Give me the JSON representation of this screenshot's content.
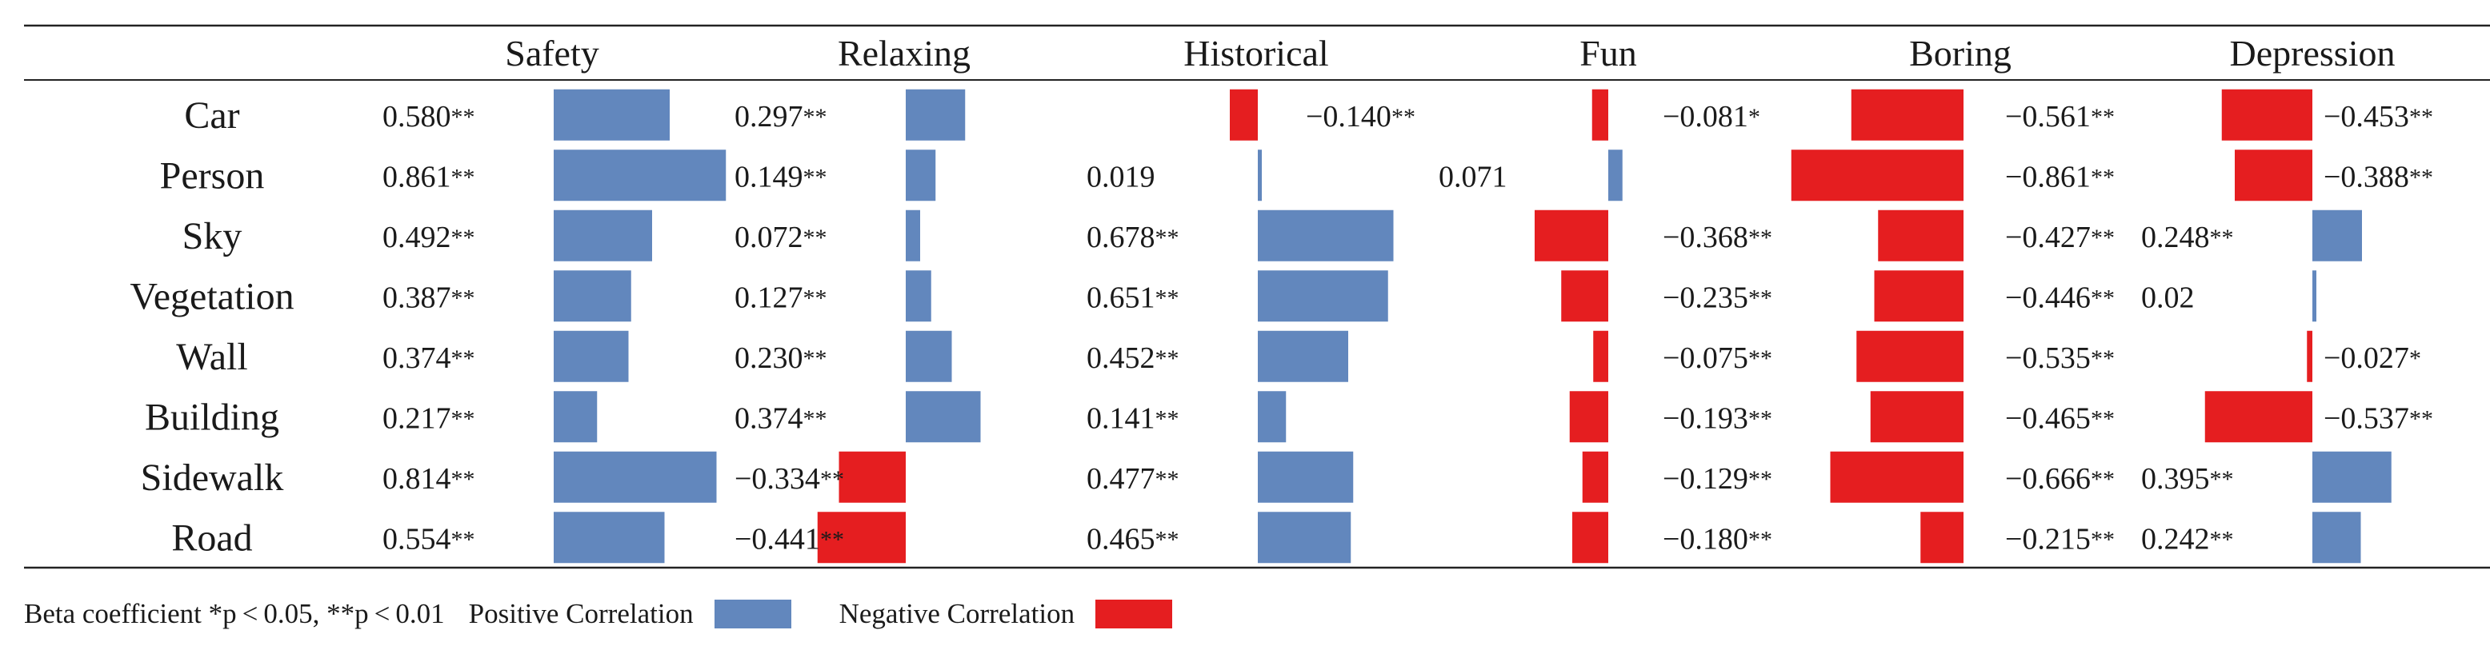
{
  "chart_data": {
    "type": "table",
    "columns": [
      "Safety",
      "Relaxing",
      "Historical",
      "Fun",
      "Boring",
      "Depression"
    ],
    "rows": [
      "Car",
      "Person",
      "Sky",
      "Vegetation",
      "Wall",
      "Building",
      "Sidewalk",
      "Road"
    ],
    "values": [
      [
        0.58,
        0.297,
        -0.14,
        -0.081,
        -0.561,
        -0.453
      ],
      [
        0.861,
        0.149,
        0.019,
        0.071,
        -0.861,
        -0.388
      ],
      [
        0.492,
        0.072,
        0.678,
        -0.368,
        -0.427,
        0.248
      ],
      [
        0.387,
        0.127,
        0.651,
        -0.235,
        -0.446,
        0.02
      ],
      [
        0.374,
        0.23,
        0.452,
        -0.075,
        -0.535,
        -0.027
      ],
      [
        0.217,
        0.374,
        0.141,
        -0.193,
        -0.465,
        -0.537
      ],
      [
        0.814,
        -0.334,
        0.477,
        -0.129,
        -0.666,
        0.395
      ],
      [
        0.554,
        -0.441,
        0.465,
        -0.18,
        -0.215,
        0.242
      ]
    ],
    "labels": [
      [
        "0.580",
        "0.297",
        "−0.140",
        "−0.081",
        "−0.561",
        "−0.453"
      ],
      [
        "0.861",
        "0.149",
        "0.019",
        "0.071",
        "−0.861",
        "−0.388"
      ],
      [
        "0.492",
        "0.072",
        "0.678",
        "−0.368",
        "−0.427",
        "0.248"
      ],
      [
        "0.387",
        "0.127",
        "0.651",
        "−0.235",
        "−0.446",
        "0.02"
      ],
      [
        "0.374",
        "0.230",
        "0.452",
        "−0.075",
        "−0.535",
        "−0.027"
      ],
      [
        "0.217",
        "0.374",
        "0.141",
        "−0.193",
        "−0.465",
        "−0.537"
      ],
      [
        "0.814",
        "−0.334",
        "0.477",
        "−0.129",
        "−0.666",
        "0.395"
      ],
      [
        "0.554",
        "−0.441",
        "0.465",
        "−0.180",
        "−0.215",
        "0.242"
      ]
    ],
    "stars": [
      [
        "**",
        "**",
        "**",
        "*",
        "**",
        "**"
      ],
      [
        "**",
        "**",
        "",
        "",
        "**",
        "**"
      ],
      [
        "**",
        "**",
        "**",
        "**",
        "**",
        "**"
      ],
      [
        "**",
        "**",
        "**",
        "**",
        "**",
        ""
      ],
      [
        "**",
        "**",
        "**",
        "**",
        "**",
        "*"
      ],
      [
        "**",
        "**",
        "**",
        "**",
        "**",
        "**"
      ],
      [
        "**",
        "**",
        "**",
        "**",
        "**",
        "**"
      ],
      [
        "**",
        "**",
        "**",
        "**",
        "**",
        "**"
      ]
    ],
    "positive_color": "#6287bd",
    "negative_color": "#e51e20"
  },
  "legend": {
    "note": "Beta coefficient *p < 0.05, **p < 0.01",
    "positive_label": "Positive Correlation",
    "negative_label": "Negative Correlation"
  }
}
